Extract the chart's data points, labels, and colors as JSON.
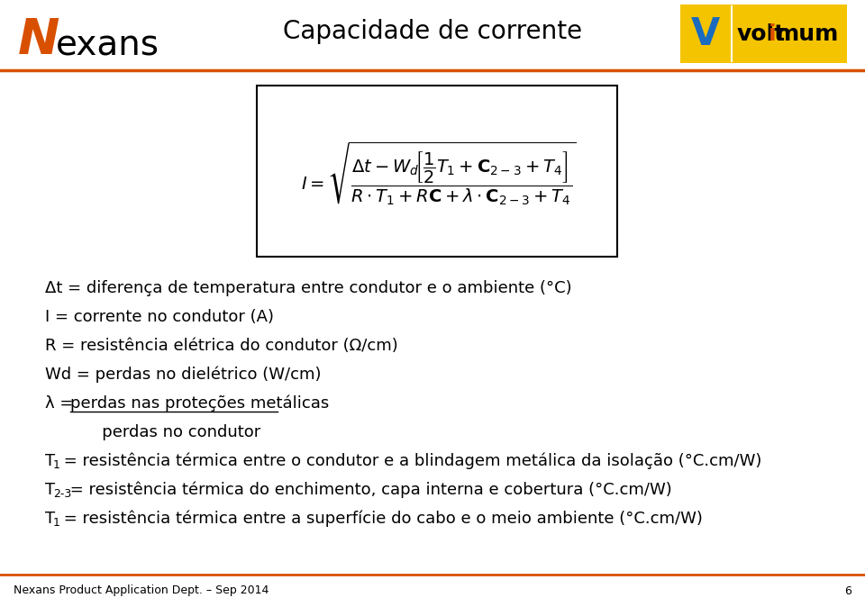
{
  "title": "Capacidade de corrente",
  "bg_color": "#ffffff",
  "header_line_color": "#d94f00",
  "nexans_text_color": "#000000",
  "nexans_n_color": "#d94f00",
  "voltimum_bg": "#f5c400",
  "voltimum_v_color": "#1a6bbf",
  "voltimum_text": "voltimum",
  "voltimum_i_color": "#d94f00",
  "formula_box_color": "#000000",
  "text_color": "#000000",
  "footer_text": "Nexans Product Application Dept. – Sep 2014",
  "footer_page": "6",
  "footer_line_color": "#d94f00",
  "lines": [
    "Δt = diferença de temperatura entre condutor e o ambiente (°C)",
    "I = corrente no condutor (A)",
    "R = resistência elétrica do condutor (Ω/cm)",
    "Wd = perdas no dielétrico (W/cm)",
    "λ = perdas nas proteções metálicas",
    "           perdas no condutor",
    "T1 = resistência térmica entre o condutor e a blindagem metálica da isolação (°C.cm/W)",
    "T2-3 = resistência térmica do enchimento, capa interna e cobertura (°C.cm/W)",
    "T1 = resistência térmica entre a superfície do cabo e o meio ambiente (°C.cm/W)"
  ],
  "underline_line_index": 4,
  "lambda_prefix": "λ = ",
  "lambda_underlined": "perdas nas proteções metálicas"
}
